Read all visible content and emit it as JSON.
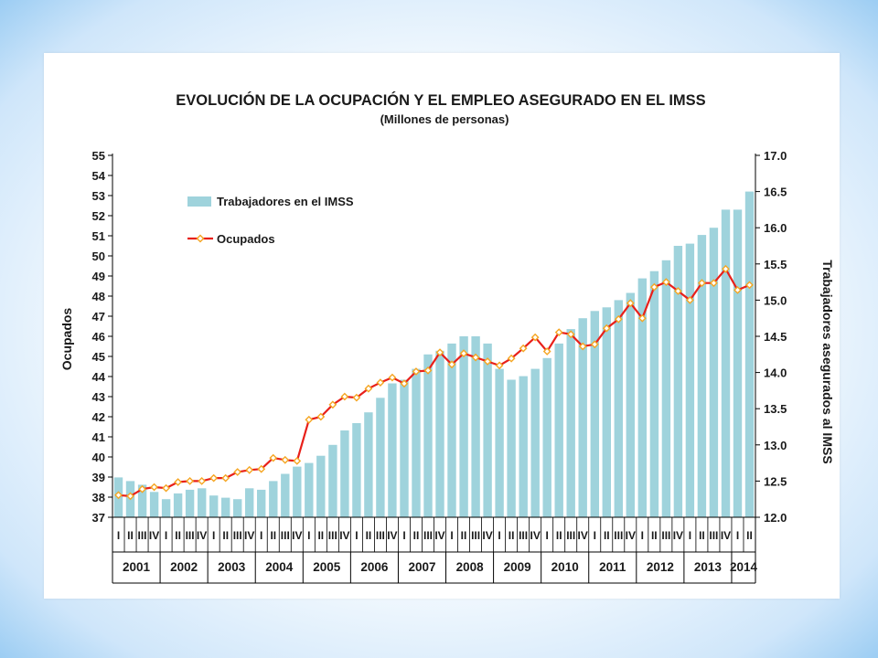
{
  "chart_data": {
    "type": "bar",
    "title": "EVOLUCIÓN DE LA OCUPACIÓN Y EL  EMPLEO ASEGURADO EN EL IMSS",
    "subtitle": "(Millones de personas)",
    "ylabel": "Ocupados",
    "y2label": "Trabajadores asegurados al IMSS",
    "ylim": [
      37,
      55
    ],
    "y2lim": [
      12.0,
      17.0
    ],
    "yticks": [
      "37",
      "38",
      "39",
      "40",
      "41",
      "42",
      "43",
      "44",
      "45",
      "46",
      "47",
      "48",
      "49",
      "50",
      "51",
      "52",
      "53",
      "54",
      "55"
    ],
    "y2ticks": [
      "12.0",
      "12.5",
      "13.0",
      "13.5",
      "14.0",
      "14.5",
      "15.0",
      "15.5",
      "16.0",
      "16.5",
      "17.0"
    ],
    "grid": false,
    "legend_position": "top-left",
    "quarter_labels": [
      "I",
      "II",
      "III",
      "IV"
    ],
    "years": [
      "2001",
      "2002",
      "2003",
      "2004",
      "2005",
      "2006",
      "2007",
      "2008",
      "2009",
      "2010",
      "2011",
      "2012",
      "2013",
      "2014"
    ],
    "categories": [
      "2001-I",
      "2001-II",
      "2001-III",
      "2001-IV",
      "2002-I",
      "2002-II",
      "2002-III",
      "2002-IV",
      "2003-I",
      "2003-II",
      "2003-III",
      "2003-IV",
      "2004-I",
      "2004-II",
      "2004-III",
      "2004-IV",
      "2005-I",
      "2005-II",
      "2005-III",
      "2005-IV",
      "2006-I",
      "2006-II",
      "2006-III",
      "2006-IV",
      "2007-I",
      "2007-II",
      "2007-III",
      "2007-IV",
      "2008-I",
      "2008-II",
      "2008-III",
      "2008-IV",
      "2009-I",
      "2009-II",
      "2009-III",
      "2009-IV",
      "2010-I",
      "2010-II",
      "2010-III",
      "2010-IV",
      "2011-I",
      "2011-II",
      "2011-III",
      "2011-IV",
      "2012-I",
      "2012-II",
      "2012-III",
      "2012-IV",
      "2013-I",
      "2013-II",
      "2013-III",
      "2013-IV",
      "2014-I",
      "2014-II"
    ],
    "series": [
      {
        "name": "Trabajadores en el IMSS",
        "kind": "bar",
        "axis": "right",
        "color": "#9fd3dc",
        "values": [
          12.55,
          12.5,
          12.45,
          12.35,
          12.25,
          12.33,
          12.38,
          12.4,
          12.3,
          12.27,
          12.25,
          12.4,
          12.38,
          12.5,
          12.6,
          12.7,
          12.75,
          12.85,
          13.0,
          13.2,
          13.3,
          13.45,
          13.65,
          13.85,
          13.9,
          14.05,
          14.25,
          14.3,
          14.4,
          14.5,
          14.5,
          14.4,
          14.05,
          13.9,
          13.95,
          14.05,
          14.2,
          14.4,
          14.6,
          14.75,
          14.85,
          14.9,
          15.0,
          15.1,
          15.3,
          15.4,
          15.55,
          15.75,
          15.78,
          15.9,
          16.0,
          16.25,
          16.25,
          16.5
        ]
      },
      {
        "name": "Ocupados",
        "kind": "line",
        "axis": "left",
        "color": "#e8201a",
        "marker_color": "#f5a623",
        "values": [
          38.1,
          38.05,
          38.4,
          38.5,
          38.45,
          38.75,
          38.8,
          38.8,
          38.95,
          38.95,
          39.25,
          39.35,
          39.4,
          39.95,
          39.85,
          39.8,
          41.85,
          42.0,
          42.6,
          43.0,
          42.95,
          43.4,
          43.7,
          43.95,
          43.65,
          44.25,
          44.3,
          45.2,
          44.6,
          45.15,
          44.95,
          44.75,
          44.55,
          44.9,
          45.4,
          45.95,
          45.25,
          46.2,
          46.1,
          45.5,
          45.6,
          46.4,
          46.85,
          47.65,
          46.9,
          48.45,
          48.7,
          48.25,
          47.8,
          48.65,
          48.65,
          49.35,
          48.3,
          48.55
        ]
      }
    ]
  }
}
